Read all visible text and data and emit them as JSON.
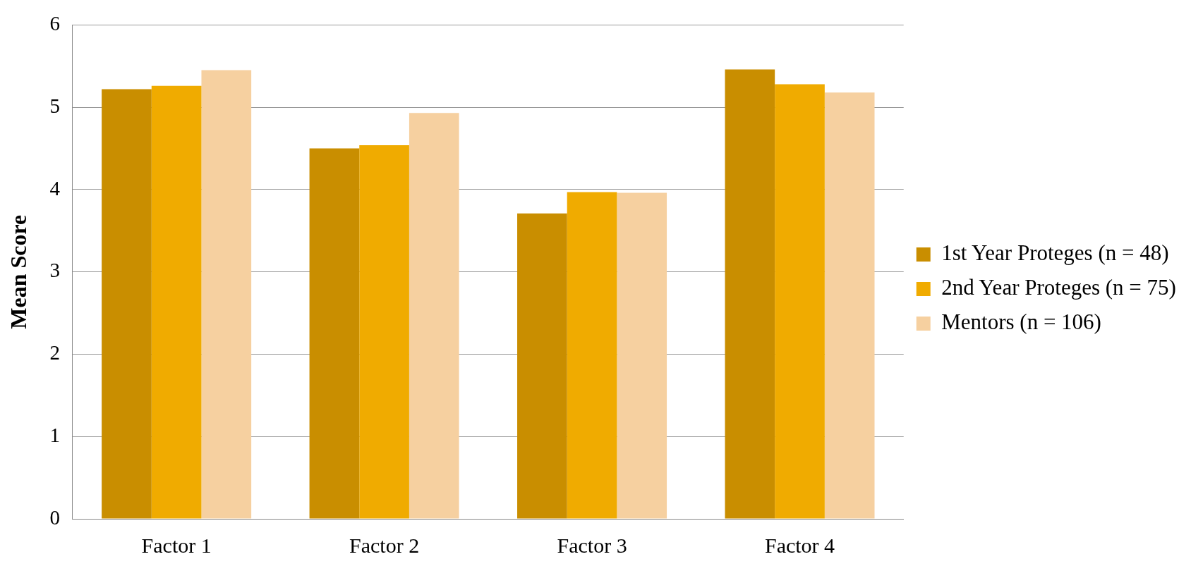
{
  "chart_data": {
    "type": "bar",
    "ylabel": "Mean Score",
    "categories": [
      "Factor 1",
      "Factor 2",
      "Factor 3",
      "Factor 4"
    ],
    "series": [
      {
        "name": "1st Year Proteges (n = 48)",
        "color": "#c98e00",
        "values": [
          5.22,
          4.5,
          3.71,
          5.46
        ]
      },
      {
        "name": "2nd Year Proteges (n = 75)",
        "color": "#f0ab00",
        "values": [
          5.26,
          4.54,
          3.97,
          5.28
        ]
      },
      {
        "name": "Mentors (n = 106)",
        "color": "#f6d0a0",
        "values": [
          5.45,
          4.93,
          3.96,
          5.18
        ]
      }
    ],
    "ylim": [
      0,
      6
    ],
    "yticks": [
      0,
      1,
      2,
      3,
      4,
      5,
      6
    ],
    "grid": "y",
    "legend": "right"
  }
}
